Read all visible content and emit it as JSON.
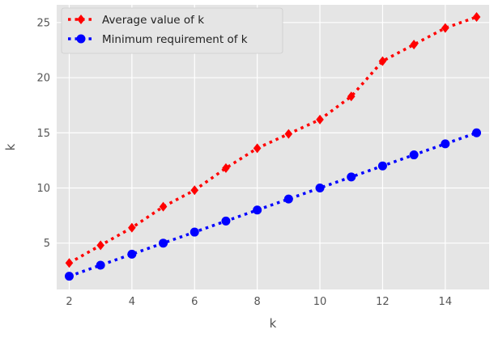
{
  "chart_data": {
    "type": "line",
    "title": "",
    "xlabel": "k",
    "ylabel": "k",
    "xlim": [
      1.6,
      15.4
    ],
    "ylim": [
      0.8,
      26.6
    ],
    "xticks": [
      2,
      4,
      6,
      8,
      10,
      12,
      14
    ],
    "yticks": [
      5,
      10,
      15,
      20,
      25
    ],
    "grid": true,
    "legend_position": "top-left",
    "x": [
      2,
      3,
      4,
      5,
      6,
      7,
      8,
      9,
      10,
      11,
      12,
      13,
      14,
      15
    ],
    "series": [
      {
        "name": "Average value of k",
        "color": "#ff0000",
        "marker": "diamond",
        "line_style": "dotted",
        "values": [
          3.2,
          4.8,
          6.4,
          8.3,
          9.8,
          11.8,
          13.6,
          14.9,
          16.2,
          18.3,
          21.5,
          23.0,
          24.5,
          25.5
        ]
      },
      {
        "name": "Minimum requirement of k",
        "color": "#0000ff",
        "marker": "circle",
        "line_style": "dotted",
        "values": [
          2,
          3,
          4,
          5,
          6,
          7,
          8,
          9,
          10,
          11,
          12,
          13,
          14,
          15
        ]
      }
    ],
    "plot_background": "#e5e5e5",
    "grid_color": "#ffffff"
  }
}
